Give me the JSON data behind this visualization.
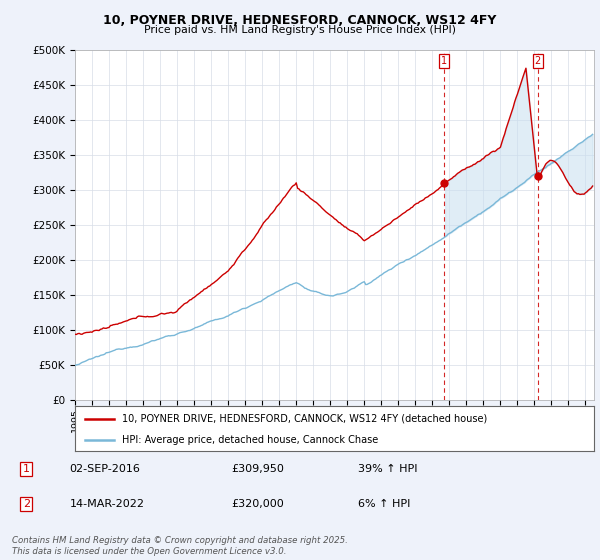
{
  "title": "10, POYNER DRIVE, HEDNESFORD, CANNOCK, WS12 4FY",
  "subtitle": "Price paid vs. HM Land Registry's House Price Index (HPI)",
  "ylabel_ticks": [
    "£0",
    "£50K",
    "£100K",
    "£150K",
    "£200K",
    "£250K",
    "£300K",
    "£350K",
    "£400K",
    "£450K",
    "£500K"
  ],
  "ytick_values": [
    0,
    50000,
    100000,
    150000,
    200000,
    250000,
    300000,
    350000,
    400000,
    450000,
    500000
  ],
  "ylim": [
    0,
    500000
  ],
  "xlim_start": 1995.0,
  "xlim_end": 2025.5,
  "hpi_color": "#7ab8d8",
  "price_color": "#cc0000",
  "purchase1_date": 2016.67,
  "purchase1_price": 309950,
  "purchase2_date": 2022.2,
  "purchase2_price": 320000,
  "purchase1_label": "02-SEP-2016",
  "purchase2_label": "14-MAR-2022",
  "purchase1_hpi": "39% ↑ HPI",
  "purchase2_hpi": "6% ↑ HPI",
  "legend_line1": "10, POYNER DRIVE, HEDNESFORD, CANNOCK, WS12 4FY (detached house)",
  "legend_line2": "HPI: Average price, detached house, Cannock Chase",
  "footnote": "Contains HM Land Registry data © Crown copyright and database right 2025.\nThis data is licensed under the Open Government Licence v3.0.",
  "background_color": "#eef2fa",
  "plot_bg_color": "#ffffff",
  "grid_color": "#d8dde8",
  "vline_color": "#cc0000",
  "shade_color": "#c8dff0"
}
